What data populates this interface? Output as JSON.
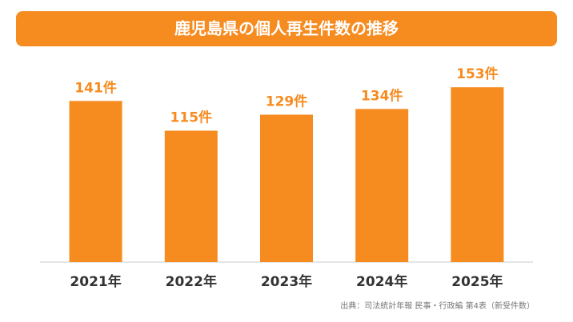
{
  "chart_data": {
    "type": "bar",
    "title": "鹿児島県の個人再生件数の推移",
    "categories": [
      "2021年",
      "2022年",
      "2023年",
      "2024年",
      "2025年"
    ],
    "values": [
      141,
      115,
      129,
      134,
      153
    ],
    "value_labels": [
      "141件",
      "115件",
      "129件",
      "134件",
      "153件"
    ],
    "color": "#f68b1f",
    "source": "出典：司法統計年報 民事・行政編 第4表（新受件数）"
  }
}
